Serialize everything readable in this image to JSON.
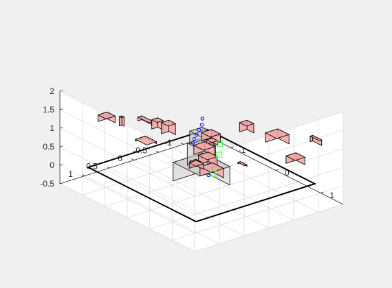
{
  "chart_data": {
    "type": "scatter",
    "title": "",
    "xlabel": "",
    "ylabel": "",
    "zlabel": "",
    "view": "3d-isometric",
    "grid": true,
    "xlim": [
      -1.5,
      1.5
    ],
    "ylim": [
      -1.5,
      1.5
    ],
    "zlim": [
      -0.5,
      2.0
    ],
    "x_ticks": [
      "-1",
      "0",
      "1"
    ],
    "y_ticks": [
      "-1",
      "-0.5",
      "0",
      "0.5",
      "1"
    ],
    "z_ticks": [
      "-0.5",
      "0",
      "0.5",
      "1",
      "1.5",
      "2"
    ],
    "colors": {
      "background": "#f0f0f0",
      "obstacle_fill": "#f4a6a6",
      "obstacle_edge": "#000000",
      "robot_body": "#c8c8c8",
      "trajectory": "#1a1aff",
      "goal": "#66ff66",
      "workspace": "#000000"
    },
    "workspace_boundary": {
      "x": [
        -1.2,
        1.2
      ],
      "y": [
        -1.2,
        1.2
      ],
      "z": 0
    },
    "robot_links": [
      {
        "center": [
          0,
          0,
          0.05
        ],
        "size": [
          0.6,
          0.6,
          0.5
        ]
      },
      {
        "center": [
          0,
          0,
          0.55
        ],
        "size": [
          0.3,
          0.3,
          0.6
        ]
      },
      {
        "center": [
          0,
          0,
          1.0
        ],
        "size": [
          0.25,
          0.25,
          0.35
        ]
      }
    ],
    "trajectory_points": [
      [
        0.02,
        0.0,
        1.55
      ],
      [
        0.03,
        0.02,
        1.4
      ],
      [
        0.0,
        0.05,
        1.25
      ],
      [
        -0.02,
        0.08,
        1.12
      ],
      [
        -0.05,
        0.1,
        1.0
      ],
      [
        -0.06,
        0.12,
        0.9
      ],
      [
        0.1,
        -0.05,
        0.05
      ]
    ],
    "goal_points": [
      [
        0.45,
        0.05,
        0.85
      ],
      [
        0.65,
        0.35,
        0.6
      ],
      [
        0.35,
        -0.05,
        1.05
      ]
    ],
    "obstacles": [
      {
        "center": [
          -0.9,
          1.1,
          1.45
        ],
        "size": [
          0.18,
          0.18,
          0.18
        ]
      },
      {
        "center": [
          -0.2,
          0.95,
          1.75
        ],
        "size": [
          0.25,
          0.08,
          0.1
        ]
      },
      {
        "center": [
          -0.1,
          0.8,
          1.65
        ],
        "size": [
          0.12,
          0.12,
          0.25
        ]
      },
      {
        "center": [
          -0.95,
          0.75,
          1.2
        ],
        "size": [
          0.05,
          0.05,
          0.25
        ]
      },
      {
        "center": [
          -0.35,
          0.35,
          1.2
        ],
        "size": [
          0.15,
          0.15,
          0.3
        ]
      },
      {
        "center": [
          0.35,
          0.1,
          1.15
        ],
        "size": [
          0.12,
          0.12,
          0.12
        ]
      },
      {
        "center": [
          0.1,
          -0.1,
          1.05
        ],
        "size": [
          0.2,
          0.2,
          0.22
        ]
      },
      {
        "center": [
          0.95,
          -0.05,
          1.85
        ],
        "size": [
          0.15,
          0.15,
          0.25
        ]
      },
      {
        "center": [
          1.3,
          -0.35,
          1.65
        ],
        "size": [
          0.25,
          0.25,
          0.25
        ]
      },
      {
        "center": [
          1.5,
          -0.95,
          1.45
        ],
        "size": [
          0.2,
          0.05,
          0.15
        ]
      },
      {
        "center": [
          0.8,
          -0.1,
          0.75
        ],
        "size": [
          0.15,
          0.05,
          0.03
        ]
      },
      {
        "center": [
          1.1,
          -0.9,
          0.7
        ],
        "size": [
          0.2,
          0.2,
          0.2
        ]
      },
      {
        "center": [
          -0.85,
          0.35,
          0.55
        ],
        "size": [
          0.25,
          0.2,
          0.05
        ]
      },
      {
        "center": [
          -0.05,
          -0.1,
          0.6
        ],
        "size": [
          0.22,
          0.22,
          0.25
        ]
      },
      {
        "center": [
          0.25,
          0.1,
          0.6
        ],
        "size": [
          0.2,
          0.2,
          0.25
        ]
      },
      {
        "center": [
          0.45,
          0.2,
          0.45
        ],
        "size": [
          0.25,
          0.25,
          0.25
        ]
      },
      {
        "center": [
          0.2,
          0.3,
          0.55
        ],
        "size": [
          0.12,
          0.12,
          0.15
        ]
      },
      {
        "center": [
          0.05,
          0.15,
          0.35
        ],
        "size": [
          0.15,
          0.15,
          0.15
        ]
      }
    ]
  }
}
